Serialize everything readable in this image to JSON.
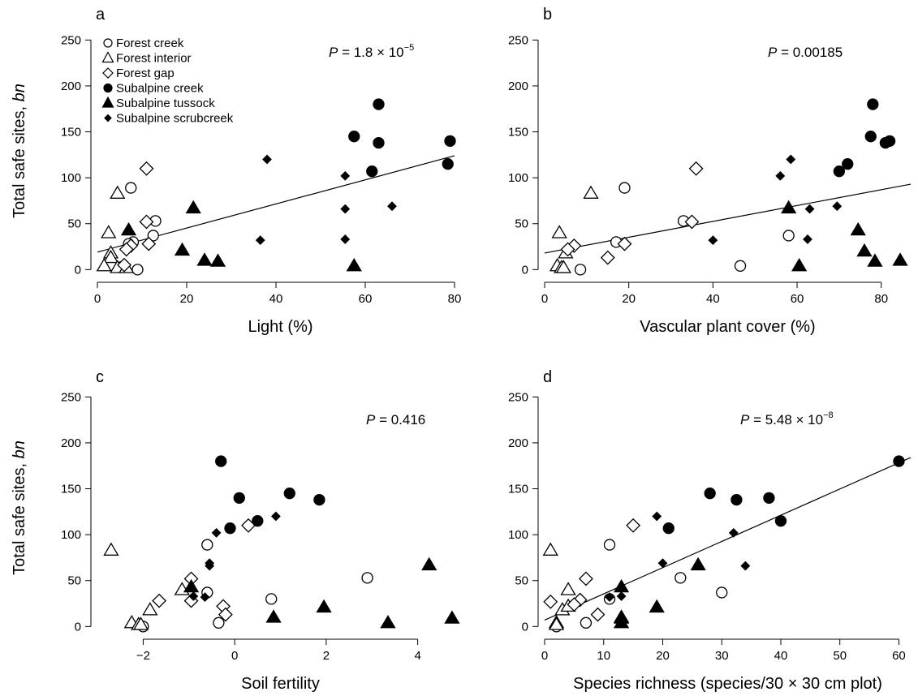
{
  "figure": {
    "ylabel_prefix": "Total safe sites, ",
    "ylabel_italic": "bn",
    "p_symbol": "P",
    "legend": [
      {
        "label": "Forest creek",
        "marker": "circle-open"
      },
      {
        "label": "Forest interior",
        "marker": "triangle-open"
      },
      {
        "label": "Forest gap",
        "marker": "diamond-open"
      },
      {
        "label": "Subalpine creek",
        "marker": "circle-filled"
      },
      {
        "label": "Subalpine tussock",
        "marker": "triangle-filled"
      },
      {
        "label": "Subalpine scrubcreek",
        "marker": "diamond-filled"
      }
    ]
  },
  "chart_data": [
    {
      "panel": "a",
      "type": "scatter",
      "xlabel": "Light (%)",
      "ylabel": "Total safe sites, bn",
      "p_text": "= 1.8 × 10",
      "p_exp": "−5",
      "xlim": [
        0,
        82
      ],
      "ylim": [
        -5,
        260
      ],
      "xticks": [
        0,
        20,
        40,
        60,
        80
      ],
      "yticks": [
        0,
        50,
        100,
        150,
        200,
        250
      ],
      "fit": [
        [
          0,
          19
        ],
        [
          80,
          124
        ]
      ],
      "series": [
        {
          "name": "Forest creek",
          "marker": "circle-open",
          "points": [
            [
              7.5,
              89
            ],
            [
              13,
              53
            ],
            [
              12.5,
              37
            ],
            [
              8,
              30
            ],
            [
              7,
              28
            ],
            [
              5.5,
              3
            ],
            [
              9,
              0
            ]
          ]
        },
        {
          "name": "Forest interior",
          "marker": "triangle-open",
          "points": [
            [
              4.5,
              83
            ],
            [
              2.5,
              40
            ],
            [
              3,
              18
            ],
            [
              3,
              13
            ],
            [
              1.5,
              4
            ],
            [
              4.5,
              2
            ],
            [
              6.5,
              2
            ]
          ]
        },
        {
          "name": "Forest gap",
          "marker": "diamond-open",
          "points": [
            [
              11,
              110
            ],
            [
              11,
              52
            ],
            [
              11.5,
              28
            ],
            [
              7.5,
              26
            ],
            [
              6.5,
              22
            ],
            [
              6,
              5
            ]
          ]
        },
        {
          "name": "Subalpine creek",
          "marker": "circle-filled",
          "points": [
            [
              63,
              180
            ],
            [
              57.5,
              145
            ],
            [
              79,
              140
            ],
            [
              63,
              138
            ],
            [
              61.5,
              107
            ],
            [
              78.5,
              115
            ]
          ]
        },
        {
          "name": "Subalpine tussock",
          "marker": "triangle-filled",
          "points": [
            [
              21.5,
              67
            ],
            [
              7,
              43
            ],
            [
              19,
              21
            ],
            [
              24,
              10
            ],
            [
              27,
              9
            ],
            [
              57.5,
              4
            ]
          ]
        },
        {
          "name": "Subalpine scrubcreek",
          "marker": "diamond-filled",
          "points": [
            [
              38,
              120
            ],
            [
              55.5,
              102
            ],
            [
              66,
              69
            ],
            [
              55.5,
              66
            ],
            [
              36.5,
              32
            ],
            [
              55.5,
              33
            ]
          ]
        }
      ]
    },
    {
      "panel": "b",
      "type": "scatter",
      "xlabel": "Vascular plant cover (%)",
      "ylabel": "",
      "p_text": "= 0.00185",
      "p_exp": "",
      "xlim": [
        0,
        87
      ],
      "ylim": [
        -5,
        260
      ],
      "xticks": [
        0,
        20,
        40,
        60,
        80
      ],
      "yticks": [
        0,
        50,
        100,
        150,
        200,
        250
      ],
      "fit": [
        [
          0,
          18
        ],
        [
          87,
          93
        ]
      ],
      "series": [
        {
          "name": "Forest creek",
          "marker": "circle-open",
          "points": [
            [
              19,
              89
            ],
            [
              33,
              53
            ],
            [
              58,
              37
            ],
            [
              17,
              30
            ],
            [
              46.5,
              4
            ],
            [
              8.5,
              0
            ]
          ]
        },
        {
          "name": "Forest interior",
          "marker": "triangle-open",
          "points": [
            [
              11,
              83
            ],
            [
              3.5,
              40
            ],
            [
              5,
              18
            ],
            [
              3,
              4
            ],
            [
              4,
              2
            ],
            [
              4.5,
              2
            ]
          ]
        },
        {
          "name": "Forest gap",
          "marker": "diamond-open",
          "points": [
            [
              36,
              110
            ],
            [
              35,
              52
            ],
            [
              19,
              28
            ],
            [
              7,
              26
            ],
            [
              5.5,
              22
            ],
            [
              15,
              13
            ]
          ]
        },
        {
          "name": "Subalpine creek",
          "marker": "circle-filled",
          "points": [
            [
              78,
              180
            ],
            [
              77.5,
              145
            ],
            [
              82,
              140
            ],
            [
              81,
              138
            ],
            [
              70,
              107
            ],
            [
              72,
              115
            ]
          ]
        },
        {
          "name": "Subalpine tussock",
          "marker": "triangle-filled",
          "points": [
            [
              58,
              67
            ],
            [
              74.5,
              43
            ],
            [
              76,
              20
            ],
            [
              84.5,
              10
            ],
            [
              78.5,
              9
            ],
            [
              60.5,
              4
            ]
          ]
        },
        {
          "name": "Subalpine scrubcreek",
          "marker": "diamond-filled",
          "points": [
            [
              58.5,
              120
            ],
            [
              56,
              102
            ],
            [
              69.5,
              69
            ],
            [
              63,
              66
            ],
            [
              40,
              32
            ],
            [
              62.5,
              33
            ]
          ]
        }
      ]
    },
    {
      "panel": "c",
      "type": "scatter",
      "xlabel": "Soil fertility",
      "ylabel": "Total safe sites, bn",
      "p_text": "= 0.416",
      "p_exp": "",
      "xlim": [
        -3,
        5
      ],
      "ylim": [
        -5,
        260
      ],
      "xticks": [
        -2,
        0,
        2,
        4
      ],
      "xticklabels": [
        "−2",
        "0",
        "2",
        "4"
      ],
      "yticks": [
        0,
        50,
        100,
        150,
        200,
        250
      ],
      "fit": null,
      "series": [
        {
          "name": "Forest creek",
          "marker": "circle-open",
          "points": [
            [
              -0.6,
              89
            ],
            [
              2.9,
              53
            ],
            [
              -0.6,
              37
            ],
            [
              0.8,
              30
            ],
            [
              -2.0,
              0
            ],
            [
              -0.35,
              4
            ]
          ]
        },
        {
          "name": "Forest interior",
          "marker": "triangle-open",
          "points": [
            [
              -2.7,
              83
            ],
            [
              -1.15,
              40
            ],
            [
              -1.85,
              18
            ],
            [
              -2.25,
              4
            ],
            [
              -2.1,
              2
            ],
            [
              -2.05,
              2
            ]
          ]
        },
        {
          "name": "Forest gap",
          "marker": "diamond-open",
          "points": [
            [
              0.3,
              110
            ],
            [
              -0.95,
              52
            ],
            [
              -1.65,
              28
            ],
            [
              -0.95,
              28
            ],
            [
              -0.25,
              22
            ],
            [
              -0.2,
              13
            ]
          ]
        },
        {
          "name": "Subalpine creek",
          "marker": "circle-filled",
          "points": [
            [
              -0.3,
              180
            ],
            [
              1.2,
              145
            ],
            [
              0.1,
              140
            ],
            [
              1.85,
              138
            ],
            [
              -0.1,
              107
            ],
            [
              0.5,
              115
            ]
          ]
        },
        {
          "name": "Subalpine tussock",
          "marker": "triangle-filled",
          "points": [
            [
              4.25,
              67
            ],
            [
              -0.95,
              43
            ],
            [
              1.95,
              21
            ],
            [
              0.85,
              10
            ],
            [
              4.75,
              9
            ],
            [
              3.35,
              4
            ]
          ]
        },
        {
          "name": "Subalpine scrubcreek",
          "marker": "diamond-filled",
          "points": [
            [
              0.9,
              120
            ],
            [
              -0.4,
              102
            ],
            [
              -0.55,
              69
            ],
            [
              -0.55,
              66
            ],
            [
              -0.65,
              32
            ],
            [
              -0.9,
              33
            ]
          ]
        }
      ]
    },
    {
      "panel": "d",
      "type": "scatter",
      "xlabel": "Species richness (species/30 × 30 cm plot)",
      "ylabel": "",
      "p_text": "= 5.48 × 10",
      "p_exp": "−8",
      "xlim": [
        0,
        62
      ],
      "ylim": [
        -5,
        260
      ],
      "xticks": [
        0,
        10,
        20,
        30,
        40,
        50,
        60
      ],
      "yticks": [
        0,
        50,
        100,
        150,
        200,
        250
      ],
      "fit": [
        [
          0,
          7
        ],
        [
          62,
          184
        ]
      ],
      "series": [
        {
          "name": "Forest creek",
          "marker": "circle-open",
          "points": [
            [
              11,
              89
            ],
            [
              23,
              53
            ],
            [
              30,
              37
            ],
            [
              11,
              30
            ],
            [
              7,
              4
            ],
            [
              2,
              0
            ]
          ]
        },
        {
          "name": "Forest interior",
          "marker": "triangle-open",
          "points": [
            [
              1,
              83
            ],
            [
              4,
              40
            ],
            [
              3,
              18
            ],
            [
              4,
              22
            ],
            [
              2,
              4
            ],
            [
              2,
              2
            ]
          ]
        },
        {
          "name": "Forest gap",
          "marker": "diamond-open",
          "points": [
            [
              15,
              110
            ],
            [
              7,
              52
            ],
            [
              1,
              27
            ],
            [
              6,
              29
            ],
            [
              9,
              13
            ],
            [
              5,
              24
            ]
          ]
        },
        {
          "name": "Subalpine creek",
          "marker": "circle-filled",
          "points": [
            [
              60,
              180
            ],
            [
              28,
              145
            ],
            [
              38,
              140
            ],
            [
              32.5,
              138
            ],
            [
              21,
              107
            ],
            [
              40,
              115
            ]
          ]
        },
        {
          "name": "Subalpine tussock",
          "marker": "triangle-filled",
          "points": [
            [
              26,
              67
            ],
            [
              13,
              43
            ],
            [
              19,
              21
            ],
            [
              13,
              10
            ],
            [
              13,
              9
            ],
            [
              13,
              4
            ]
          ]
        },
        {
          "name": "Subalpine scrubcreek",
          "marker": "diamond-filled",
          "points": [
            [
              19,
              120
            ],
            [
              32,
              102
            ],
            [
              20,
              69
            ],
            [
              34,
              66
            ],
            [
              11,
              32
            ],
            [
              13,
              33
            ]
          ]
        }
      ]
    }
  ]
}
